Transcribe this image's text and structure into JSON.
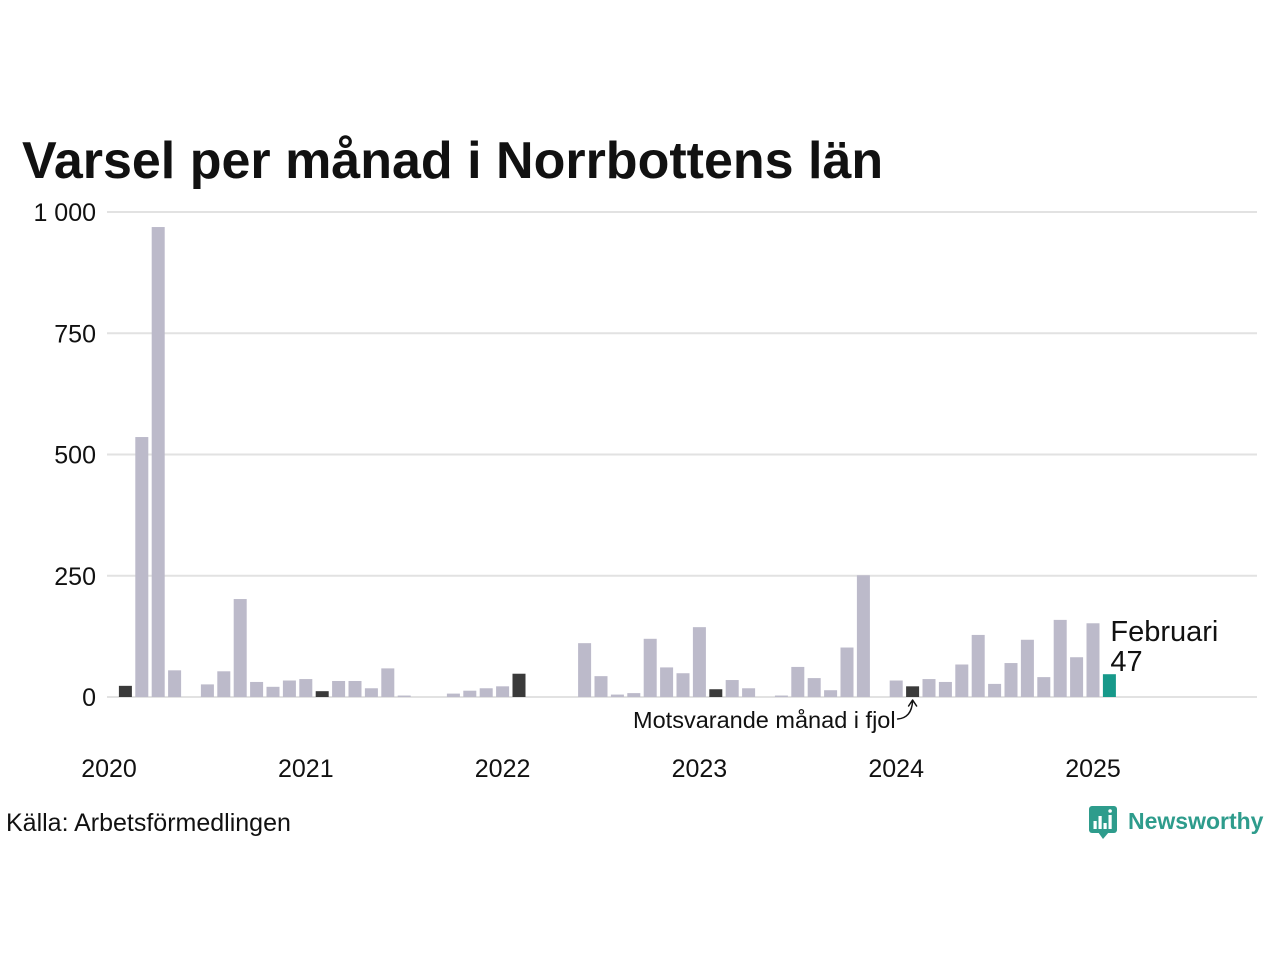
{
  "chart_data": {
    "type": "bar",
    "title": "Varsel per månad i Norrbottens län",
    "x": [
      "2020-01",
      "2020-02",
      "2020-03",
      "2020-04",
      "2020-05",
      "2020-06",
      "2020-07",
      "2020-08",
      "2020-09",
      "2020-10",
      "2020-11",
      "2020-12",
      "2021-01",
      "2021-02",
      "2021-03",
      "2021-04",
      "2021-05",
      "2021-06",
      "2021-07",
      "2021-08",
      "2021-09",
      "2021-10",
      "2021-11",
      "2021-12",
      "2022-01",
      "2022-02",
      "2022-03",
      "2022-04",
      "2022-05",
      "2022-06",
      "2022-07",
      "2022-08",
      "2022-09",
      "2022-10",
      "2022-11",
      "2022-12",
      "2023-01",
      "2023-02",
      "2023-03",
      "2023-04",
      "2023-05",
      "2023-06",
      "2023-07",
      "2023-08",
      "2023-09",
      "2023-10",
      "2023-11",
      "2023-12",
      "2024-01",
      "2024-02",
      "2024-03",
      "2024-04",
      "2024-05",
      "2024-06",
      "2024-07",
      "2024-08",
      "2024-09",
      "2024-10",
      "2024-11",
      "2024-12",
      "2025-01",
      "2025-02"
    ],
    "values": [
      0,
      23,
      536,
      969,
      55,
      0,
      26,
      53,
      202,
      31,
      21,
      34,
      37,
      12,
      33,
      33,
      18,
      59,
      3,
      0,
      0,
      7,
      13,
      18,
      22,
      48,
      0,
      0,
      0,
      111,
      43,
      5,
      8,
      120,
      61,
      49,
      144,
      16,
      35,
      18,
      0,
      3,
      62,
      39,
      14,
      102,
      251,
      0,
      34,
      22,
      37,
      31,
      67,
      128,
      27,
      70,
      118,
      41,
      159,
      82,
      152,
      47
    ],
    "xlim": [
      "2020-01",
      "2025-11"
    ],
    "ylim": [
      0,
      1000
    ],
    "y_ticks": [
      0,
      250,
      500,
      750,
      1000
    ],
    "y_tick_labels": [
      "0",
      "250",
      "500",
      "750",
      "1 000"
    ],
    "x_ticks": [
      "2020-01",
      "2021-01",
      "2022-01",
      "2023-01",
      "2024-01",
      "2025-01"
    ],
    "x_tick_labels": [
      "2020",
      "2021",
      "2022",
      "2023",
      "2024",
      "2025"
    ],
    "grid": true,
    "highlight_month": "2025-02",
    "annotations": {
      "current_label": "Februari",
      "current_value": "47",
      "same_month_label": "Motsvarande månad i fjol"
    },
    "colors": {
      "bar": "#bcbaca",
      "same_month": "#3a3a3a",
      "current": "#17998a",
      "grid": "#e2e2e2",
      "text": "#111111"
    }
  },
  "source": "Källa: Arbetsförmedlingen",
  "logo": {
    "text": "Newsworthy",
    "icon": "newsworthy-logo-icon",
    "color": "#2e9c8c"
  }
}
